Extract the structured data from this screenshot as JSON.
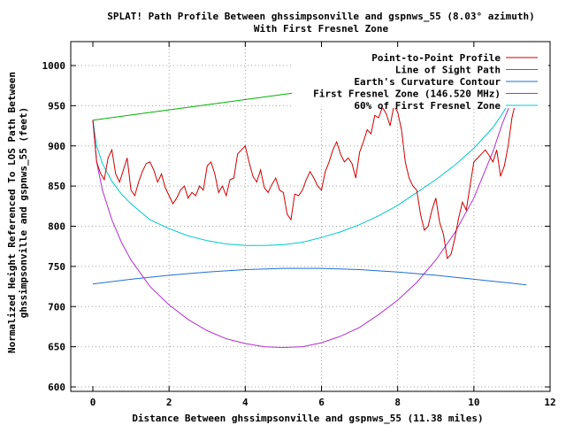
{
  "chart_data": {
    "type": "line",
    "title": "SPLAT! Path Profile Between ghssimpsonville and gspnws_55 (8.03° azimuth)",
    "subtitle": "With First Fresnel Zone",
    "xlabel": "Distance Between ghssimpsonville and gspnws_55 (11.38 miles)",
    "ylabel_line1": "Normalized Height Referenced To LOS Path Between",
    "ylabel_line2": "ghssimpsonville and gspnws_55 (feet)",
    "xlim": [
      0,
      12
    ],
    "ylim": [
      600,
      1000
    ],
    "xticks": [
      0,
      2,
      4,
      6,
      8,
      10,
      12
    ],
    "yticks": [
      600,
      650,
      700,
      750,
      800,
      850,
      900,
      950,
      1000
    ],
    "grid": true,
    "legend_position": "top-right",
    "series": [
      {
        "name": "Point-to-Point Profile",
        "color": "#cc0000",
        "x": [
          0,
          0.1,
          0.2,
          0.3,
          0.4,
          0.5,
          0.6,
          0.7,
          0.8,
          0.9,
          1.0,
          1.1,
          1.2,
          1.3,
          1.4,
          1.5,
          1.6,
          1.7,
          1.8,
          1.9,
          2.0,
          2.1,
          2.2,
          2.3,
          2.4,
          2.5,
          2.6,
          2.7,
          2.8,
          2.9,
          3.0,
          3.1,
          3.2,
          3.3,
          3.4,
          3.5,
          3.6,
          3.7,
          3.8,
          3.9,
          4.0,
          4.1,
          4.2,
          4.3,
          4.4,
          4.5,
          4.6,
          4.7,
          4.8,
          4.9,
          5.0,
          5.1,
          5.2,
          5.3,
          5.4,
          5.5,
          5.6,
          5.7,
          5.8,
          5.9,
          6.0,
          6.1,
          6.2,
          6.3,
          6.4,
          6.5,
          6.6,
          6.7,
          6.8,
          6.9,
          7.0,
          7.1,
          7.2,
          7.3,
          7.4,
          7.5,
          7.6,
          7.7,
          7.8,
          7.9,
          8.0,
          8.1,
          8.2,
          8.3,
          8.4,
          8.5,
          8.6,
          8.7,
          8.8,
          8.9,
          9.0,
          9.1,
          9.2,
          9.3,
          9.4,
          9.5,
          9.6,
          9.7,
          9.8,
          9.9,
          10.0,
          10.1,
          10.2,
          10.3,
          10.4,
          10.5,
          10.6,
          10.7,
          10.8,
          10.9,
          11.0,
          11.1,
          11.2,
          11.3,
          11.38
        ],
        "values": [
          932,
          880,
          866,
          858,
          885,
          895,
          865,
          855,
          870,
          885,
          845,
          838,
          855,
          868,
          878,
          880,
          870,
          855,
          865,
          848,
          838,
          828,
          835,
          845,
          850,
          835,
          842,
          838,
          850,
          845,
          875,
          880,
          865,
          842,
          850,
          838,
          858,
          860,
          890,
          895,
          900,
          880,
          862,
          855,
          870,
          848,
          842,
          852,
          860,
          845,
          842,
          815,
          808,
          840,
          838,
          845,
          858,
          868,
          860,
          850,
          845,
          868,
          880,
          895,
          905,
          890,
          880,
          885,
          878,
          860,
          892,
          905,
          920,
          915,
          938,
          935,
          948,
          940,
          925,
          950,
          942,
          920,
          880,
          860,
          850,
          845,
          815,
          795,
          800,
          820,
          835,
          805,
          790,
          760,
          765,
          785,
          810,
          830,
          820,
          850,
          880,
          885,
          890,
          895,
          888,
          880,
          895,
          862,
          875,
          900,
          935,
          955,
          958,
          970,
          1002
        ]
      },
      {
        "name": "Line of Sight Path",
        "color": "#00b000",
        "x": [
          0,
          11.38
        ],
        "values": [
          932,
          1005
        ]
      },
      {
        "name": "Earth's Curvature Contour",
        "color": "#1f6fd0",
        "x": [
          0,
          1,
          2,
          3,
          4,
          5,
          6,
          7,
          8,
          9,
          10,
          11,
          11.38
        ],
        "values": [
          728,
          734,
          739,
          743,
          746,
          747.5,
          747.5,
          746,
          743,
          739,
          734,
          729,
          727
        ]
      },
      {
        "name": "First Fresnel Zone (146.520 MHz)",
        "color": "#b030d0",
        "x": [
          0,
          0.1,
          0.25,
          0.5,
          0.75,
          1,
          1.5,
          2,
          2.5,
          3,
          3.5,
          4,
          4.5,
          5,
          5.5,
          6,
          6.5,
          7,
          7.5,
          8,
          8.5,
          9,
          9.5,
          10,
          10.5,
          10.75,
          11,
          11.15,
          11.28,
          11.38
        ],
        "values": [
          932,
          880,
          845,
          808,
          780,
          758,
          725,
          702,
          684,
          670,
          660,
          654,
          650,
          649,
          650,
          655,
          663,
          674,
          690,
          708,
          730,
          758,
          792,
          835,
          893,
          928,
          957,
          975,
          990,
          1005
        ]
      },
      {
        "name": "60% of First Fresnel Zone",
        "color": "#00c8c8",
        "x": [
          0,
          0.1,
          0.25,
          0.5,
          0.75,
          1,
          1.5,
          2,
          2.5,
          3,
          3.5,
          4,
          4.5,
          5,
          5.5,
          6,
          6.5,
          7,
          7.5,
          8,
          8.5,
          9,
          9.5,
          10,
          10.5,
          10.75,
          11,
          11.15,
          11.28,
          11.38
        ],
        "values": [
          932,
          900,
          878,
          856,
          840,
          828,
          808,
          797,
          788,
          782,
          778,
          776,
          776,
          777,
          780,
          786,
          793,
          802,
          813,
          826,
          842,
          858,
          876,
          897,
          923,
          940,
          960,
          974,
          987,
          1002
        ]
      }
    ]
  }
}
